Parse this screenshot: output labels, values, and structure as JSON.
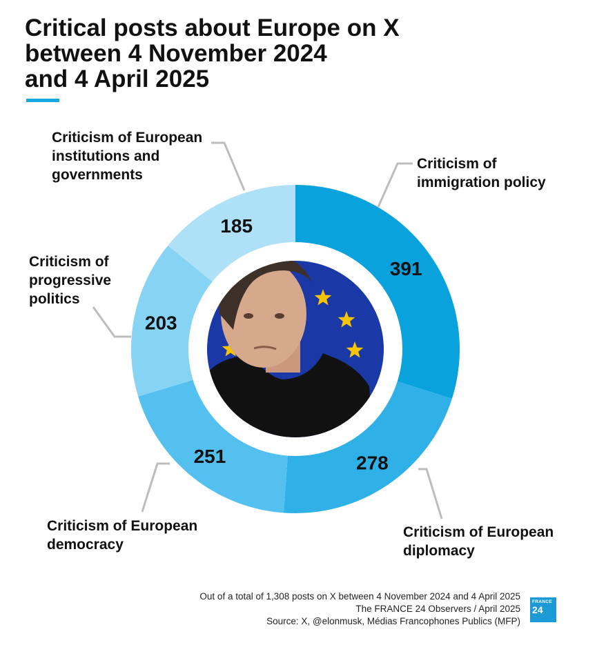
{
  "title": "Critical posts about Europe on X\nbetween 4 November 2024\nand 4 April 2025",
  "chart_data": {
    "type": "pie",
    "variant": "donut",
    "categories": [
      "Criticism of immigration policy",
      "Criticism of European diplomacy",
      "Criticism of European democracy",
      "Criticism of progressive politics",
      "Criticism of European institutions and governments"
    ],
    "labels": [
      "Criticism of\nimmigration policy",
      "Criticism of European\ndiplomacy",
      "Criticism of European\ndemocracy",
      "Criticism of\nprogressive\npolitics",
      "Criticism of European\ninstitutions and\ngovernments"
    ],
    "values": [
      391,
      278,
      251,
      203,
      185
    ],
    "colors": [
      "#0aa2dc",
      "#2fb1e8",
      "#53c0ef",
      "#86d3f4",
      "#aee1f7"
    ]
  },
  "center_image": {
    "description_icon": "photo-icon",
    "flag_colors": {
      "background": "#1a39a6",
      "stars": "#f6c400"
    }
  },
  "footer": {
    "line1": "Out of a total of 1,308 posts on X between 4 November 2024 and 4 April 2025",
    "line2": "The FRANCE 24 Observers / April 2025",
    "line3": "Source: X, @elonmusk, Médias Francophones Publics (MFP)"
  },
  "logo": {
    "line1": "FRANCE",
    "line2": "24",
    "color": "#1b9ad6"
  }
}
